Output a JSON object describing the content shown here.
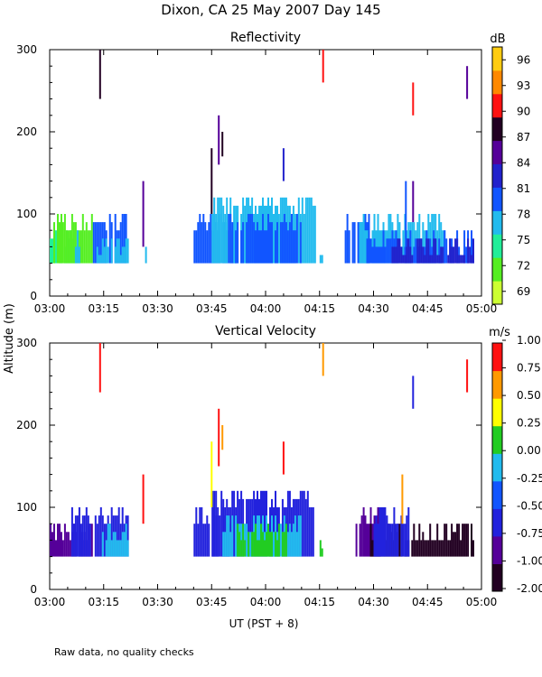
{
  "figure": {
    "title": "Dixon, CA 25 May 2007  Day 145",
    "ylabel": "Altitude (m)",
    "xlabel": "UT  (PST + 8)",
    "footnote": "Raw data, no quality checks"
  },
  "colors": {
    "reflectivity_scale": [
      "#ccff33",
      "#55ee22",
      "#22ee99",
      "#22bbee",
      "#1155ff",
      "#2222cc",
      "#550099",
      "#220022",
      "#ff1111",
      "#ff8800",
      "#ffcc11"
    ],
    "velocity_scale": [
      "#220022",
      "#550099",
      "#2222dd",
      "#1155ff",
      "#22bbee",
      "#22cc22",
      "#ffff00",
      "#ff9900",
      "#ff1111"
    ]
  },
  "chart_data": [
    {
      "type": "heatmap",
      "title": "Reflectivity",
      "units": "dB",
      "xlabel": "UT  (PST + 8)",
      "ylabel": "Altitude (m)",
      "xlim_minutes": [
        0,
        120
      ],
      "ylim": [
        0,
        300
      ],
      "xticks": [
        0,
        15,
        30,
        45,
        60,
        75,
        90,
        105,
        120
      ],
      "xtick_labels": [
        "03:00",
        "03:15",
        "03:30",
        "03:45",
        "04:00",
        "04:15",
        "04:30",
        "04:45",
        "05:00"
      ],
      "yticks": [
        0,
        100,
        200,
        300
      ],
      "ytick_labels": [
        "0",
        "100",
        "200",
        "300"
      ],
      "colorbar_min": 67.5,
      "colorbar_max": 97.5,
      "colorbar_ticks": [
        "69",
        "72",
        "75",
        "78",
        "81",
        "84",
        "87",
        "90",
        "93",
        "96"
      ],
      "blocks": [
        {
          "t0": 0,
          "t1": 7,
          "bottom": 40,
          "top": 80,
          "color_index": 2
        },
        {
          "t0": 1,
          "t1": 12,
          "bottom": 40,
          "top": 100,
          "color_index": 1
        },
        {
          "t0": 7,
          "t1": 9,
          "bottom": 40,
          "top": 80,
          "color_index": 3
        },
        {
          "t0": 12,
          "t1": 22,
          "bottom": 40,
          "top": 100,
          "color_index": 4
        },
        {
          "t0": 13,
          "t1": 22,
          "bottom": 40,
          "top": 70,
          "color_index": 3
        },
        {
          "t0": 26,
          "t1": 27,
          "bottom": 40,
          "top": 60,
          "color_index": 3
        },
        {
          "t0": 40,
          "t1": 52,
          "bottom": 40,
          "top": 100,
          "color_index": 4
        },
        {
          "t0": 45,
          "t1": 74,
          "bottom": 40,
          "top": 120,
          "color_index": 3
        },
        {
          "t0": 50,
          "t1": 70,
          "bottom": 40,
          "top": 100,
          "color_index": 4
        },
        {
          "t0": 75,
          "t1": 76,
          "bottom": 40,
          "top": 60,
          "color_index": 3
        },
        {
          "t0": 82,
          "t1": 89,
          "bottom": 40,
          "top": 100,
          "color_index": 4
        },
        {
          "t0": 86,
          "t1": 110,
          "bottom": 40,
          "top": 100,
          "color_index": 3
        },
        {
          "t0": 88,
          "t1": 118,
          "bottom": 40,
          "top": 80,
          "color_index": 4
        },
        {
          "t0": 95,
          "t1": 118,
          "bottom": 40,
          "top": 70,
          "color_index": 5
        }
      ],
      "streaks": [
        {
          "t": 14,
          "bottom": 240,
          "top": 300,
          "color_index": 7
        },
        {
          "t": 26,
          "bottom": 60,
          "top": 140,
          "color_index": 6
        },
        {
          "t": 45,
          "bottom": 100,
          "top": 180,
          "color_index": 7
        },
        {
          "t": 47,
          "bottom": 160,
          "top": 220,
          "color_index": 6
        },
        {
          "t": 48,
          "bottom": 170,
          "top": 200,
          "color_index": 7
        },
        {
          "t": 65,
          "bottom": 140,
          "top": 180,
          "color_index": 5
        },
        {
          "t": 76,
          "bottom": 260,
          "top": 300,
          "color_index": 8
        },
        {
          "t": 99,
          "bottom": 60,
          "top": 140,
          "color_index": 4
        },
        {
          "t": 101,
          "bottom": 90,
          "top": 140,
          "color_index": 6
        },
        {
          "t": 101,
          "bottom": 220,
          "top": 260,
          "color_index": 8
        },
        {
          "t": 116,
          "bottom": 240,
          "top": 280,
          "color_index": 6
        }
      ]
    },
    {
      "type": "heatmap",
      "title": "Vertical Velocity",
      "units": "m/s",
      "xlabel": "UT  (PST + 8)",
      "ylabel": "Altitude (m)",
      "xlim_minutes": [
        0,
        120
      ],
      "ylim": [
        0,
        300
      ],
      "xticks": [
        0,
        15,
        30,
        45,
        60,
        75,
        90,
        105,
        120
      ],
      "xtick_labels": [
        "03:00",
        "03:15",
        "03:30",
        "03:45",
        "04:00",
        "04:15",
        "04:30",
        "04:45",
        "05:00"
      ],
      "yticks": [
        0,
        100,
        200,
        300
      ],
      "ytick_labels": [
        "0",
        "100",
        "200",
        "300"
      ],
      "colorbar_ticks": [
        "-2.00",
        "-1.00",
        "-0.75",
        "-0.50",
        "-0.25",
        "0.00",
        "0.25",
        "0.50",
        "0.75",
        "1.00"
      ],
      "blocks": [
        {
          "t0": 0,
          "t1": 12,
          "bottom": 40,
          "top": 80,
          "color_index": 1
        },
        {
          "t0": 6,
          "t1": 22,
          "bottom": 40,
          "top": 100,
          "color_index": 2
        },
        {
          "t0": 14,
          "t1": 22,
          "bottom": 40,
          "top": 80,
          "color_index": 4
        },
        {
          "t0": 40,
          "t1": 50,
          "bottom": 40,
          "top": 100,
          "color_index": 2
        },
        {
          "t0": 45,
          "t1": 74,
          "bottom": 40,
          "top": 120,
          "color_index": 2
        },
        {
          "t0": 48,
          "t1": 70,
          "bottom": 40,
          "top": 90,
          "color_index": 4
        },
        {
          "t0": 52,
          "t1": 66,
          "bottom": 40,
          "top": 80,
          "color_index": 5
        },
        {
          "t0": 75,
          "t1": 76,
          "bottom": 40,
          "top": 60,
          "color_index": 5
        },
        {
          "t0": 85,
          "t1": 92,
          "bottom": 40,
          "top": 100,
          "color_index": 1
        },
        {
          "t0": 89,
          "t1": 118,
          "bottom": 40,
          "top": 80,
          "color_index": 0
        },
        {
          "t0": 90,
          "t1": 100,
          "bottom": 40,
          "top": 100,
          "color_index": 2
        }
      ],
      "streaks": [
        {
          "t": 14,
          "bottom": 240,
          "top": 300,
          "color_index": 8
        },
        {
          "t": 26,
          "bottom": 80,
          "top": 140,
          "color_index": 8
        },
        {
          "t": 45,
          "bottom": 100,
          "top": 180,
          "color_index": 6
        },
        {
          "t": 47,
          "bottom": 150,
          "top": 220,
          "color_index": 8
        },
        {
          "t": 48,
          "bottom": 170,
          "top": 200,
          "color_index": 7
        },
        {
          "t": 65,
          "bottom": 140,
          "top": 180,
          "color_index": 8
        },
        {
          "t": 76,
          "bottom": 260,
          "top": 300,
          "color_index": 7
        },
        {
          "t": 98,
          "bottom": 80,
          "top": 140,
          "color_index": 7
        },
        {
          "t": 101,
          "bottom": 220,
          "top": 260,
          "color_index": 2
        },
        {
          "t": 116,
          "bottom": 240,
          "top": 280,
          "color_index": 8
        }
      ]
    }
  ]
}
